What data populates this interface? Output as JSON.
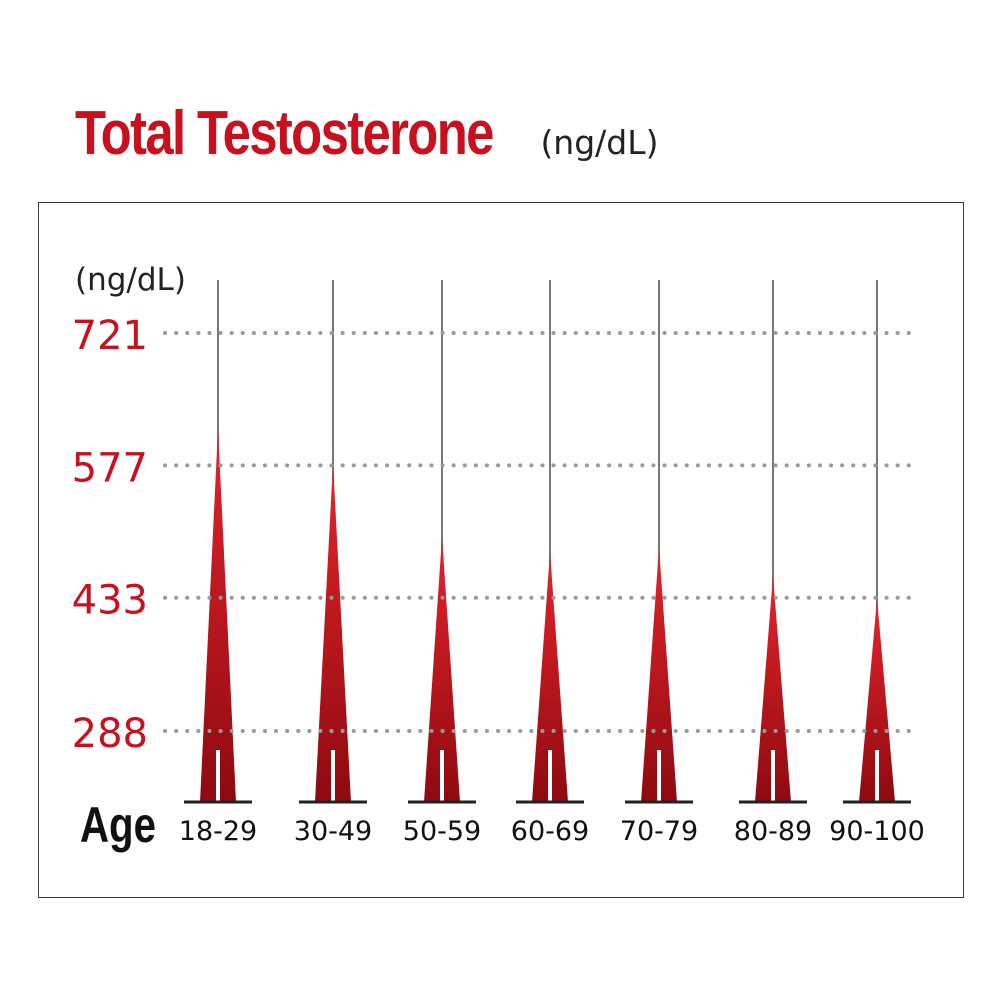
{
  "header": {
    "title": "Total Testosterone",
    "unit": "(ng/dL)"
  },
  "chart_data": {
    "type": "bar",
    "title": "Total Testosterone",
    "title_unit": "(ng/dL)",
    "ylabel": "(ng/dL)",
    "xlabel": "Age",
    "categories": [
      "18-29",
      "30-49",
      "50-59",
      "60-69",
      "70-79",
      "80-89",
      "90-100"
    ],
    "values": [
      617,
      579,
      499,
      483,
      488,
      457,
      432
    ],
    "yticks": [
      288,
      433,
      577,
      721
    ],
    "grid": "dotted horizontal",
    "colors": {
      "bar_top": "#e3242b",
      "bar_bottom": "#8e0a10",
      "tick_label": "#c8101e",
      "grid": "#9a9a9a",
      "stem": "#777777",
      "baseline": "#222222"
    }
  }
}
